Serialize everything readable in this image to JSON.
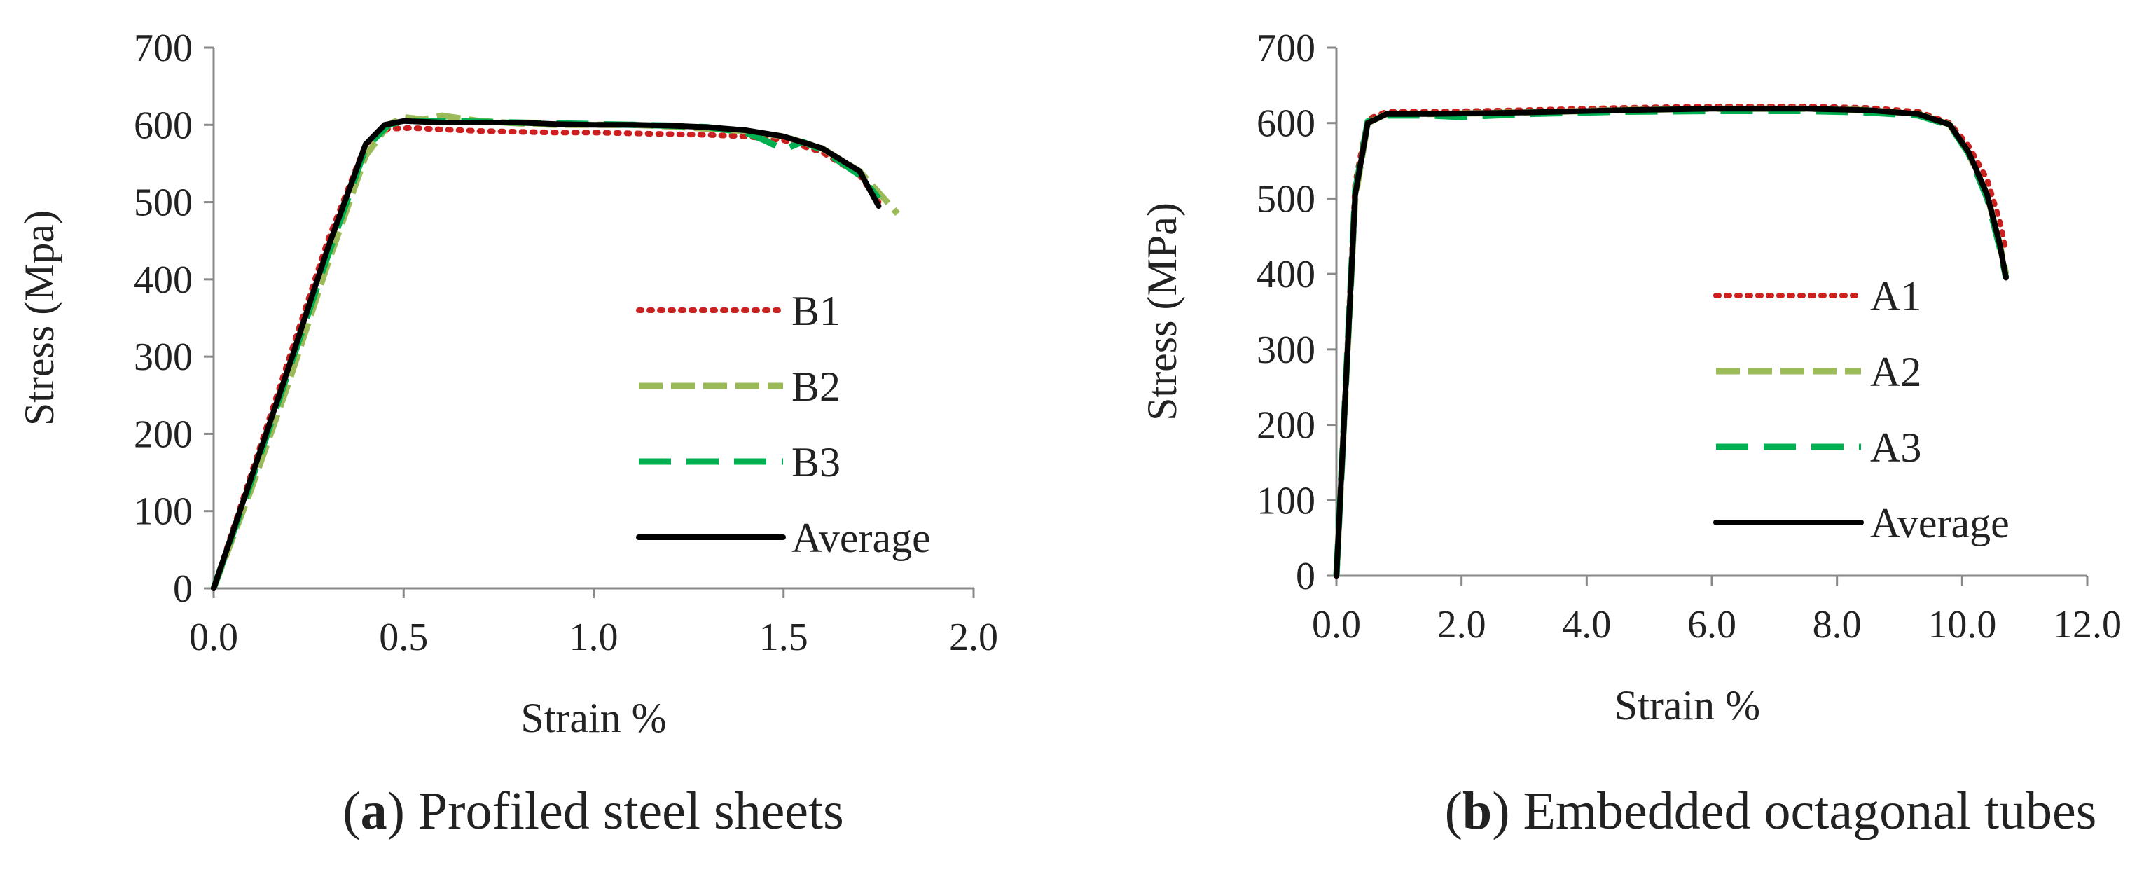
{
  "chart_data": [
    {
      "type": "line",
      "xlabel": "Strain %",
      "ylabel": "Stress (Mpa)",
      "xlim": [
        0,
        2.0
      ],
      "ylim": [
        0,
        700
      ],
      "xticks": [
        "0.0",
        "0.5",
        "1.0",
        "1.5",
        "2.0"
      ],
      "yticks": [
        "0",
        "100",
        "200",
        "300",
        "400",
        "500",
        "600",
        "700"
      ],
      "legend_position": "center-right",
      "caption_letter": "a",
      "caption_text": "Profiled steel sheets",
      "series": [
        {
          "name": "B1",
          "style": "dotted",
          "color": "#cc1f1f",
          "x": [
            0,
            0.1,
            0.2,
            0.3,
            0.4,
            0.46,
            0.52,
            0.6,
            0.7,
            0.8,
            0.9,
            1.0,
            1.1,
            1.2,
            1.3,
            1.4,
            1.5,
            1.6,
            1.7,
            1.75
          ],
          "y": [
            0,
            150,
            300,
            450,
            575,
            595,
            596,
            594,
            592,
            591,
            590,
            590,
            589,
            588,
            587,
            585,
            580,
            565,
            535,
            500
          ]
        },
        {
          "name": "B2",
          "style": "dashed",
          "color": "#9bbb59",
          "x": [
            0,
            0.1,
            0.2,
            0.3,
            0.4,
            0.46,
            0.5,
            0.55,
            0.6,
            0.7,
            0.8,
            0.9,
            1.0,
            1.1,
            1.2,
            1.3,
            1.4,
            1.5,
            1.6,
            1.7,
            1.8
          ],
          "y": [
            0,
            130,
            270,
            420,
            560,
            600,
            610,
            607,
            612,
            605,
            602,
            600,
            600,
            600,
            598,
            595,
            592,
            585,
            570,
            540,
            485
          ]
        },
        {
          "name": "B3",
          "style": "long-dashed",
          "color": "#00b050",
          "x": [
            0,
            0.1,
            0.2,
            0.3,
            0.4,
            0.46,
            0.5,
            0.6,
            0.7,
            0.8,
            0.9,
            1.0,
            1.1,
            1.2,
            1.3,
            1.4,
            1.45,
            1.5,
            1.55,
            1.6,
            1.7,
            1.75
          ],
          "y": [
            0,
            140,
            285,
            430,
            570,
            600,
            605,
            605,
            604,
            603,
            602,
            601,
            600,
            599,
            597,
            590,
            580,
            568,
            578,
            568,
            535,
            505
          ]
        },
        {
          "name": "Average",
          "style": "solid",
          "color": "#000000",
          "x": [
            0,
            0.1,
            0.2,
            0.3,
            0.4,
            0.45,
            0.5,
            0.6,
            0.7,
            0.8,
            0.9,
            1.0,
            1.1,
            1.2,
            1.3,
            1.4,
            1.5,
            1.6,
            1.7,
            1.75
          ],
          "y": [
            0,
            145,
            290,
            440,
            575,
            600,
            605,
            603,
            603,
            603,
            601,
            600,
            600,
            599,
            597,
            593,
            585,
            570,
            540,
            495
          ]
        }
      ]
    },
    {
      "type": "line",
      "xlabel": "Strain %",
      "ylabel": "Stress (MPa)",
      "xlim": [
        0,
        12.0
      ],
      "ylim": [
        0,
        700
      ],
      "xticks": [
        "0.0",
        "2.0",
        "4.0",
        "6.0",
        "8.0",
        "10.0",
        "12.0"
      ],
      "yticks": [
        "0",
        "100",
        "200",
        "300",
        "400",
        "500",
        "600",
        "700"
      ],
      "legend_position": "center-right",
      "caption_letter": "b",
      "caption_text": "Embedded octagonal tubes",
      "series": [
        {
          "name": "A1",
          "style": "dotted",
          "color": "#cc1f1f",
          "x": [
            0,
            0.3,
            0.5,
            0.8,
            1.5,
            3,
            4.5,
            6,
            7.5,
            8.5,
            9.3,
            9.8,
            10.1,
            10.4,
            10.6,
            10.7
          ],
          "y": [
            0,
            520,
            605,
            615,
            615,
            617,
            620,
            622,
            622,
            620,
            615,
            600,
            570,
            525,
            470,
            430
          ]
        },
        {
          "name": "A2",
          "style": "dashed",
          "color": "#9bbb59",
          "x": [
            0,
            0.3,
            0.5,
            0.8,
            1.5,
            3,
            4.5,
            6,
            7.5,
            8.5,
            9.3,
            9.8,
            10.1,
            10.4,
            10.6,
            10.7
          ],
          "y": [
            0,
            500,
            600,
            612,
            612,
            614,
            617,
            619,
            619,
            617,
            612,
            598,
            560,
            505,
            440,
            400
          ]
        },
        {
          "name": "A3",
          "style": "long-dashed",
          "color": "#00b050",
          "x": [
            0,
            0.3,
            0.5,
            0.8,
            1.5,
            2,
            3,
            4.5,
            6,
            7.5,
            8.5,
            9.3,
            9.8,
            10.1,
            10.4,
            10.6,
            10.7
          ],
          "y": [
            0,
            510,
            602,
            610,
            610,
            608,
            612,
            615,
            616,
            616,
            614,
            610,
            597,
            560,
            500,
            435,
            395
          ]
        },
        {
          "name": "Average",
          "style": "solid",
          "color": "#000000",
          "x": [
            0,
            0.3,
            0.5,
            0.8,
            1.5,
            3,
            4.5,
            6,
            7.5,
            8.5,
            9.3,
            9.8,
            10.1,
            10.4,
            10.6,
            10.7
          ],
          "y": [
            0,
            505,
            600,
            612,
            612,
            614,
            617,
            619,
            619,
            617,
            612,
            598,
            562,
            505,
            440,
            395
          ]
        }
      ]
    }
  ]
}
